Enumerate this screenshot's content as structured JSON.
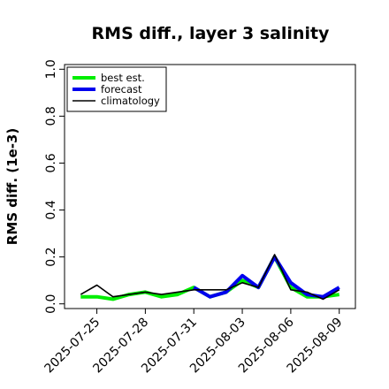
{
  "chart_data": {
    "type": "line",
    "title": "RMS diff., layer 3 salinity",
    "xlabel": "",
    "ylabel": "RMS diff. (1e-3)",
    "ylim": [
      -0.02,
      1.02
    ],
    "yticks": [
      0.0,
      0.2,
      0.4,
      0.6,
      0.8,
      1.0
    ],
    "ytick_labels": [
      "0.0",
      "0.2",
      "0.4",
      "0.6",
      "0.8",
      "1.0"
    ],
    "x": [
      "2025-07-24",
      "2025-07-25",
      "2025-07-26",
      "2025-07-27",
      "2025-07-28",
      "2025-07-29",
      "2025-07-30",
      "2025-07-31",
      "2025-08-01",
      "2025-08-02",
      "2025-08-03",
      "2025-08-04",
      "2025-08-05",
      "2025-08-06",
      "2025-08-07",
      "2025-08-08",
      "2025-08-09"
    ],
    "xlim": [
      "2025-07-23",
      "2025-08-10"
    ],
    "xtick_labels": [
      "2025-07-25",
      "2025-07-28",
      "2025-07-31",
      "2025-08-03",
      "2025-08-06",
      "2025-08-09"
    ],
    "highlighted_xtick": "2025-07-31",
    "highlight_color": "#228B22",
    "grid": false,
    "legend_position": "top-left",
    "series": [
      {
        "name": "best est.",
        "color": "#00ee00",
        "values": [
          0.03,
          0.03,
          0.02,
          0.04,
          0.05,
          0.03,
          0.04,
          0.07,
          0.03,
          0.05,
          0.1,
          0.07,
          0.2,
          0.07,
          0.03,
          0.03,
          0.04
        ]
      },
      {
        "name": "forecast",
        "color": "#0000ee",
        "values": [
          null,
          null,
          null,
          null,
          null,
          null,
          null,
          0.07,
          0.03,
          0.05,
          0.12,
          0.07,
          0.2,
          0.09,
          0.04,
          0.03,
          0.07
        ]
      },
      {
        "name": "climatology",
        "color": "#000000",
        "values": [
          0.04,
          0.08,
          0.03,
          0.04,
          0.05,
          0.04,
          0.05,
          0.06,
          0.06,
          0.06,
          0.09,
          0.07,
          0.21,
          0.06,
          0.05,
          0.02,
          0.06
        ]
      }
    ]
  }
}
